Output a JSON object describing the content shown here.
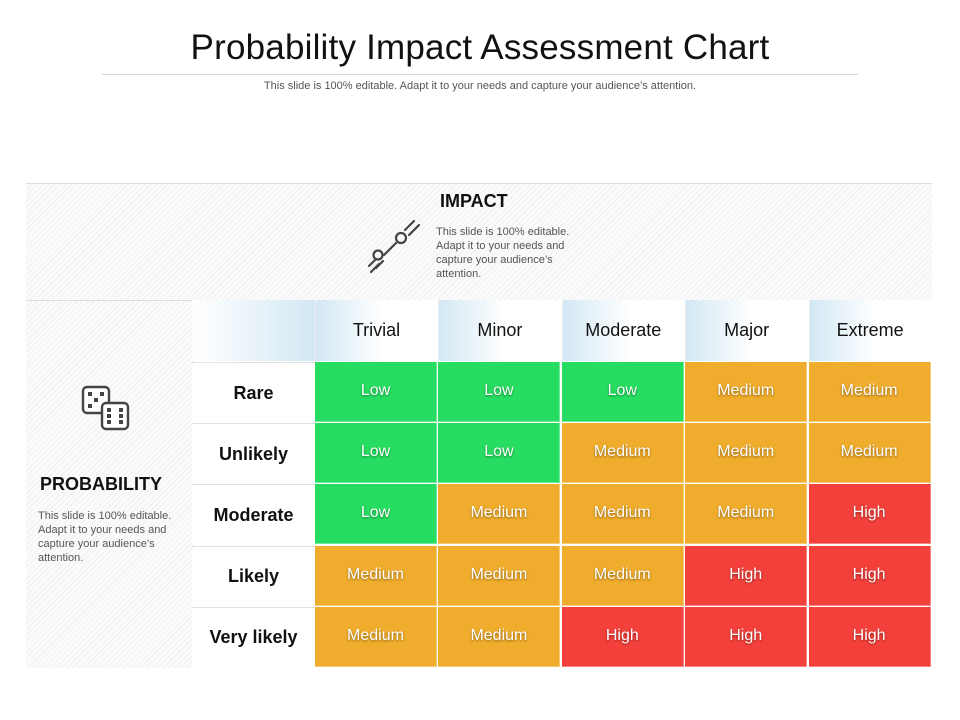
{
  "header": {
    "title": "Probability Impact Assessment Chart",
    "subtitle": "This slide is 100% editable. Adapt it to your needs and capture your audience’s attention."
  },
  "impact": {
    "label": "IMPACT",
    "description": "This slide is 100% editable. Adapt it to your needs and capture your audience’s attention.",
    "icon": "meteor-icon"
  },
  "probability": {
    "label": "PROBABILITY",
    "description": "This slide is 100% editable. Adapt it to your needs and capture your audience’s attention.",
    "icon": "dice-icon"
  },
  "matrix": {
    "columns": [
      "Trivial",
      "Minor",
      "Moderate",
      "Major",
      "Extreme"
    ],
    "rows": [
      "Rare",
      "Unlikely",
      "Moderate",
      "Likely",
      "Very likely"
    ],
    "cells": [
      [
        "Low",
        "Low",
        "Low",
        "Medium",
        "Medium"
      ],
      [
        "Low",
        "Low",
        "Medium",
        "Medium",
        "Medium"
      ],
      [
        "Low",
        "Medium",
        "Medium",
        "Medium",
        "High"
      ],
      [
        "Medium",
        "Medium",
        "Medium",
        "High",
        "High"
      ],
      [
        "Medium",
        "Medium",
        "High",
        "High",
        "High"
      ]
    ],
    "colors": {
      "Low": "#27dd61",
      "Medium": "#f0ac2c",
      "High": "#f3403b"
    }
  }
}
